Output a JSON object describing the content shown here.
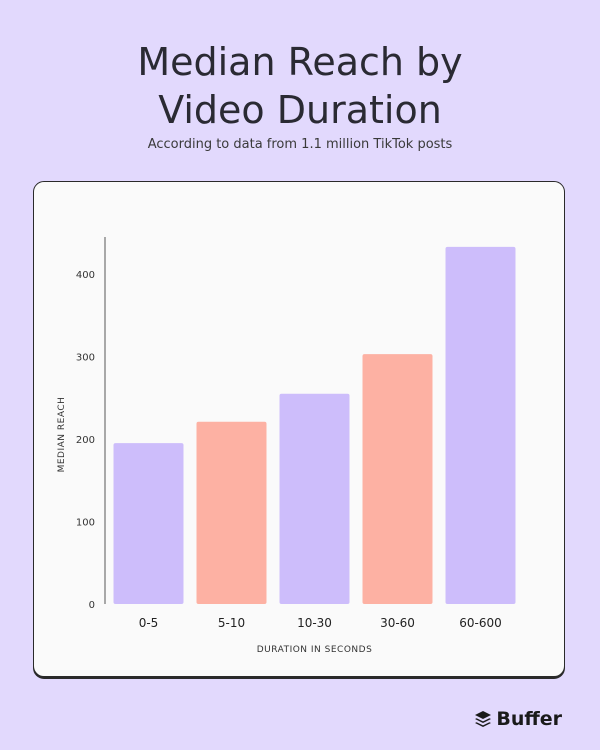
{
  "header": {
    "title_line1": "Median Reach by",
    "title_line2": "Video Duration",
    "subtitle": "According to data from 1.1 million TikTok posts"
  },
  "brand": {
    "name": "Buffer",
    "icon": "buffer-logo-icon"
  },
  "colors": {
    "background": "#e2d9fd",
    "purple": "#cdbdfb",
    "salmon": "#fdb1a3",
    "card": "#fafafa"
  },
  "chart_data": {
    "type": "bar",
    "categories": [
      "0-5",
      "5-10",
      "10-30",
      "30-60",
      "60-600"
    ],
    "values": [
      195,
      221,
      255,
      303,
      433
    ],
    "bar_colors": [
      "#cdbdfb",
      "#fdb1a3",
      "#cdbdfb",
      "#fdb1a3",
      "#cdbdfb"
    ],
    "xlabel": "DURATION IN SECONDS",
    "ylabel": "MEDIAN REACH",
    "yticks": [
      0,
      100,
      200,
      300,
      400
    ],
    "ylim": [
      0,
      445
    ],
    "grid": false
  }
}
